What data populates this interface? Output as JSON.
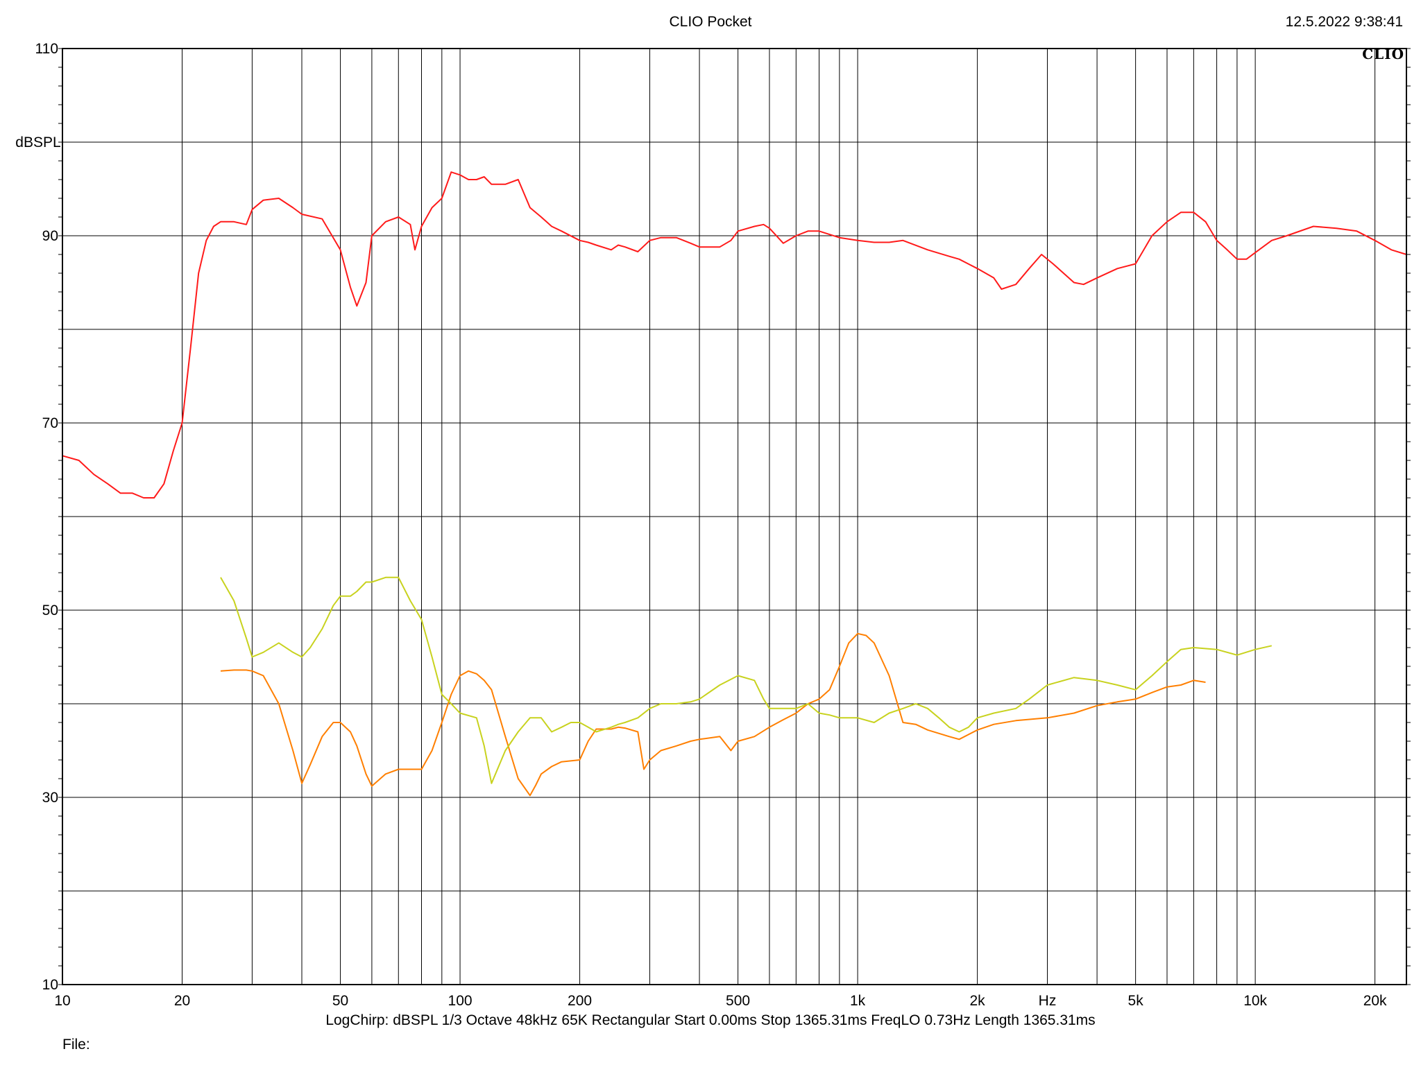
{
  "header": {
    "title": "CLIO Pocket",
    "timestamp": "12.5.2022 9:38:41",
    "brand": "CLIO"
  },
  "footer": {
    "settings": "LogChirp:  dBSPL   1/3 Octave   48kHz   65K   Rectangular   Start 0.00ms    Stop 1365.31ms    FreqLO 0.73Hz    Length 1365.31ms",
    "file_label": "File:"
  },
  "chart_data": {
    "type": "line",
    "xscale": "log",
    "xlim": [
      10,
      24000
    ],
    "ylim": [
      10,
      110
    ],
    "ylabel": "dBSPL",
    "xunit": "Hz",
    "grid": true,
    "x_ticks": [
      {
        "value": 10,
        "label": "10"
      },
      {
        "value": 20,
        "label": "20"
      },
      {
        "value": 50,
        "label": "50"
      },
      {
        "value": 100,
        "label": "100"
      },
      {
        "value": 200,
        "label": "200"
      },
      {
        "value": 500,
        "label": "500"
      },
      {
        "value": 1000,
        "label": "1k"
      },
      {
        "value": 2000,
        "label": "2k"
      },
      {
        "value": 5000,
        "label": "5k"
      },
      {
        "value": 10000,
        "label": "10k"
      },
      {
        "value": 20000,
        "label": "20k"
      }
    ],
    "y_ticks": [
      {
        "value": 110,
        "label": "110"
      },
      {
        "value": 90,
        "label": "90"
      },
      {
        "value": 70,
        "label": "70"
      },
      {
        "value": 50,
        "label": "50"
      },
      {
        "value": 30,
        "label": "30"
      },
      {
        "value": 10,
        "label": "10"
      }
    ],
    "series": [
      {
        "color": "#ff1a1a",
        "x": [
          10,
          11,
          12,
          13,
          14,
          15,
          16,
          17,
          18,
          19,
          20,
          21,
          22,
          23,
          24,
          25,
          27,
          29,
          30,
          32,
          35,
          38,
          40,
          45,
          50,
          53,
          55,
          58,
          60,
          65,
          70,
          75,
          77,
          80,
          85,
          90,
          95,
          100,
          105,
          110,
          115,
          120,
          130,
          140,
          150,
          160,
          170,
          180,
          200,
          210,
          220,
          240,
          250,
          260,
          280,
          300,
          320,
          350,
          380,
          400,
          450,
          480,
          500,
          550,
          580,
          600,
          650,
          700,
          750,
          800,
          900,
          1000,
          1100,
          1200,
          1300,
          1500,
          1700,
          1800,
          2000,
          2200,
          2300,
          2500,
          2700,
          2900,
          3100,
          3500,
          3700,
          4000,
          4500,
          5000,
          5500,
          6000,
          6500,
          7000,
          7500,
          8000,
          8500,
          9000,
          9500,
          10000,
          11000,
          12000,
          14000,
          16000,
          18000,
          20000,
          22000,
          24000
        ],
        "y": [
          66.5,
          66,
          64.5,
          63.5,
          62.5,
          62.5,
          62,
          62,
          63.5,
          67,
          70,
          78,
          86,
          89.5,
          91,
          91.5,
          91.5,
          91.2,
          92.8,
          93.8,
          94,
          93,
          92.3,
          91.8,
          88.5,
          84.5,
          82.5,
          85,
          90,
          91.5,
          92,
          91.2,
          88.5,
          91,
          93,
          94,
          96.8,
          96.5,
          96,
          96,
          96.3,
          95.5,
          95.5,
          96,
          93,
          92,
          91,
          90.5,
          89.5,
          89.3,
          89,
          88.5,
          89,
          88.8,
          88.3,
          89.5,
          89.8,
          89.8,
          89.2,
          88.8,
          88.8,
          89.5,
          90.5,
          91,
          91.2,
          90.8,
          89.2,
          90,
          90.5,
          90.5,
          89.8,
          89.5,
          89.3,
          89.3,
          89.5,
          88.5,
          87.8,
          87.5,
          86.5,
          85.5,
          84.3,
          84.8,
          86.5,
          88,
          87,
          85,
          84.8,
          85.5,
          86.5,
          87,
          90,
          91.5,
          92.5,
          92.5,
          91.5,
          89.5,
          88.5,
          87.5,
          87.5,
          88.2,
          89.5,
          90,
          91,
          90.8,
          90.5,
          89.5,
          88.5,
          88
        ]
      },
      {
        "color": "#ff7f00",
        "x": [
          25,
          27,
          29,
          30,
          32,
          35,
          38,
          40,
          42,
          45,
          48,
          50,
          53,
          55,
          58,
          60,
          63,
          65,
          70,
          75,
          80,
          85,
          90,
          95,
          100,
          105,
          110,
          115,
          120,
          130,
          140,
          150,
          155,
          160,
          170,
          180,
          200,
          210,
          220,
          240,
          250,
          260,
          280,
          290,
          300,
          320,
          350,
          380,
          400,
          450,
          480,
          500,
          550,
          600,
          650,
          700,
          750,
          800,
          850,
          900,
          950,
          1000,
          1050,
          1100,
          1200,
          1300,
          1400,
          1500,
          1700,
          1800,
          2000,
          2200,
          2500,
          3000,
          3500,
          4000,
          4500,
          5000,
          5500,
          6000,
          6500,
          7000,
          7500
        ],
        "y": [
          43.5,
          43.6,
          43.6,
          43.5,
          43,
          40,
          35,
          31.5,
          33.5,
          36.5,
          38,
          38,
          37,
          35.5,
          32.5,
          31.2,
          32,
          32.5,
          33,
          33,
          33,
          35,
          38,
          41,
          43,
          43.5,
          43.2,
          42.5,
          41.5,
          36.5,
          32,
          30.2,
          31.3,
          32.5,
          33.3,
          33.8,
          34,
          36,
          37.3,
          37.3,
          37.5,
          37.4,
          37,
          33,
          34,
          35,
          35.5,
          36,
          36.2,
          36.5,
          35,
          36,
          36.5,
          37.5,
          38.3,
          39,
          40,
          40.5,
          41.5,
          44,
          46.5,
          47.5,
          47.3,
          46.5,
          43,
          38,
          37.8,
          37.2,
          36.5,
          36.2,
          37.2,
          37.8,
          38.2,
          38.5,
          39,
          39.8,
          40.2,
          40.5,
          41.2,
          41.8,
          42,
          42.5,
          42.3
        ]
      },
      {
        "color": "#c8d21e",
        "x": [
          25,
          27,
          29,
          30,
          32,
          35,
          38,
          40,
          42,
          45,
          48,
          50,
          53,
          55,
          58,
          60,
          65,
          70,
          75,
          80,
          85,
          90,
          95,
          100,
          110,
          115,
          120,
          130,
          140,
          150,
          160,
          170,
          180,
          190,
          200,
          210,
          220,
          240,
          250,
          260,
          280,
          300,
          320,
          350,
          380,
          400,
          450,
          500,
          550,
          580,
          600,
          650,
          700,
          750,
          800,
          850,
          900,
          1000,
          1100,
          1200,
          1300,
          1400,
          1500,
          1600,
          1700,
          1800,
          1900,
          2000,
          2200,
          2500,
          2700,
          3000,
          3500,
          4000,
          4500,
          5000,
          5500,
          6000,
          6500,
          7000,
          8000,
          9000,
          10000,
          11000
        ],
        "y": [
          53.5,
          51,
          47,
          45,
          45.5,
          46.5,
          45.5,
          45,
          46,
          48,
          50.5,
          51.5,
          51.5,
          52,
          53,
          53,
          53.5,
          53.5,
          51,
          49,
          45,
          41,
          40,
          39,
          38.5,
          35.5,
          31.5,
          35,
          37,
          38.5,
          38.5,
          37,
          37.5,
          38,
          38,
          37.5,
          37,
          37.5,
          37.8,
          38,
          38.5,
          39.5,
          40,
          40,
          40.2,
          40.5,
          42,
          43,
          42.5,
          40.5,
          39.5,
          39.5,
          39.5,
          40,
          39,
          38.8,
          38.5,
          38.5,
          38,
          39,
          39.5,
          40,
          39.5,
          38.5,
          37.5,
          37,
          37.5,
          38.5,
          39,
          39.5,
          40.5,
          42,
          42.8,
          42.5,
          42,
          41.5,
          43,
          44.5,
          45.8,
          46,
          45.8,
          45.2,
          45.8,
          46.2
        ]
      }
    ]
  }
}
